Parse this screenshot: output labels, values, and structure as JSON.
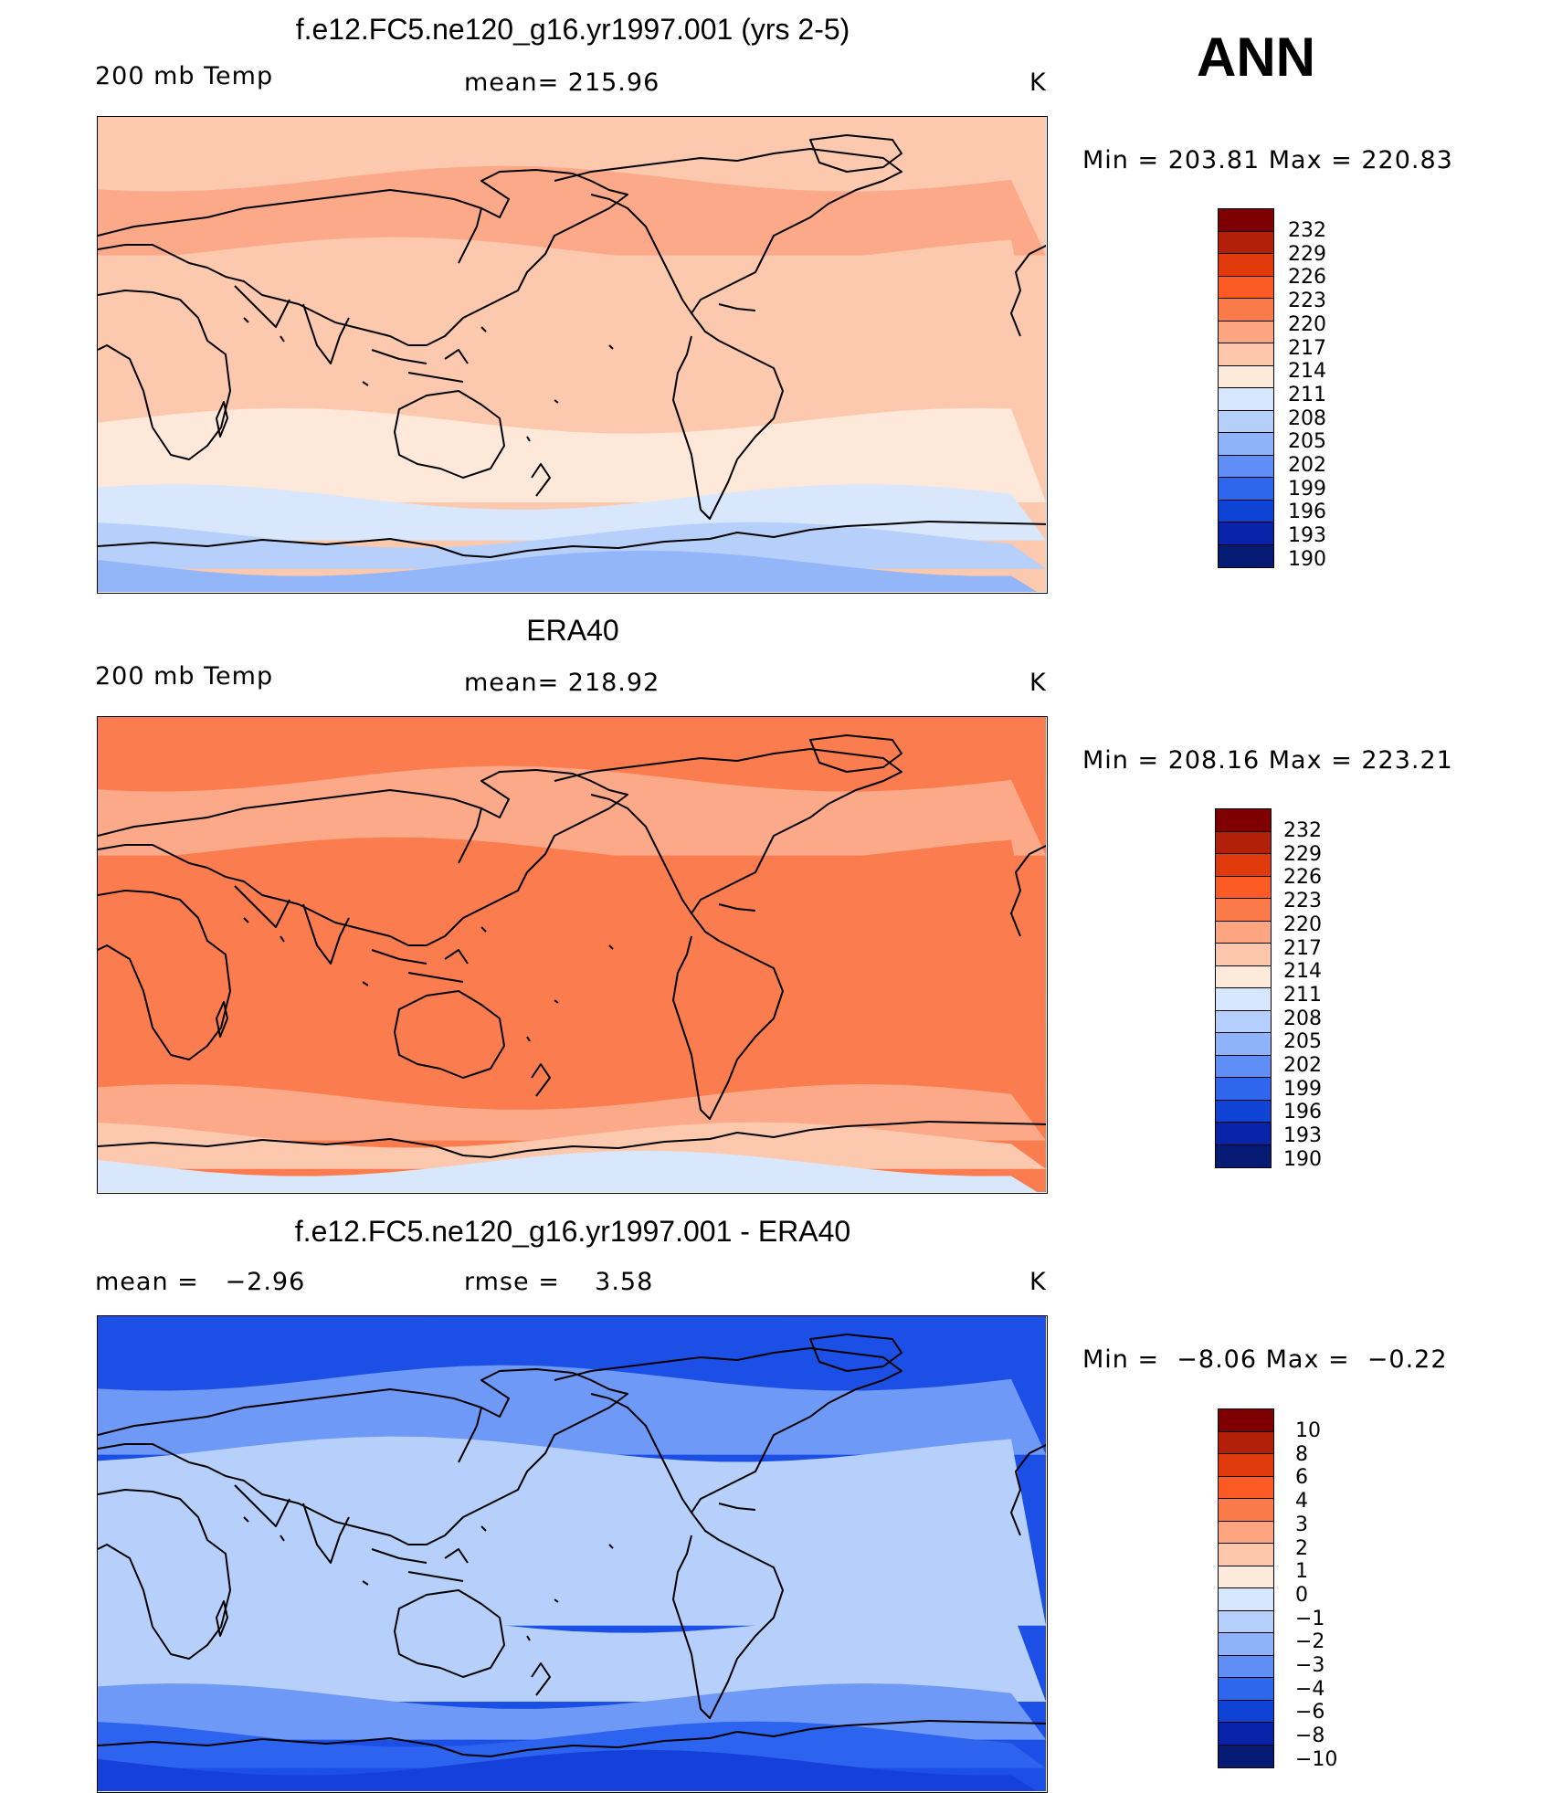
{
  "season": "ANN",
  "panels": [
    {
      "id": "model",
      "title": "f.e12.FC5.ne120_g16.yr1997.001 (yrs 2-5)",
      "left_label": "200 mb Temp",
      "center_label": "mean= 215.96",
      "units": "K",
      "minmax": "Min = 203.81 Max = 220.83",
      "legend_labels": [
        "232",
        "229",
        "226",
        "223",
        "220",
        "217",
        "214",
        "211",
        "208",
        "205",
        "202",
        "199",
        "196",
        "193",
        "190"
      ],
      "legend_colors": [
        "#7f0000",
        "#b3200a",
        "#e03a0c",
        "#fb5a25",
        "#fb7a4a",
        "#fca580",
        "#fdc7ab",
        "#feeadb",
        "#d6e6fc",
        "#b4cffb",
        "#8fb3f9",
        "#5f8ff6",
        "#2e67ee",
        "#0f43d6",
        "#0823a8",
        "#051b73"
      ],
      "map_bands": [
        "#fdc9ae",
        "#fca98a",
        "#fdc9ae",
        "#fee8da",
        "#d8e7fc",
        "#b6d0fb",
        "#93b6f9"
      ]
    },
    {
      "id": "obs",
      "title": "ERA40",
      "left_label": "200 mb Temp",
      "center_label": "mean= 218.92",
      "units": "K",
      "minmax": "Min = 208.16 Max = 223.21",
      "legend_labels": [
        "232",
        "229",
        "226",
        "223",
        "220",
        "217",
        "214",
        "211",
        "208",
        "205",
        "202",
        "199",
        "196",
        "193",
        "190"
      ],
      "legend_colors": [
        "#7f0000",
        "#b3200a",
        "#e03a0c",
        "#fb5a25",
        "#fb7a4a",
        "#fca580",
        "#fdc7ab",
        "#feeadb",
        "#d6e6fc",
        "#b4cffb",
        "#8fb3f9",
        "#5f8ff6",
        "#2e67ee",
        "#0f43d6",
        "#0823a8",
        "#051b73"
      ],
      "map_bands": [
        "#fb7d4f",
        "#fca98a",
        "#fb7d4f",
        "#fb7d4f",
        "#fca98a",
        "#fdc9ae",
        "#d8e7fc"
      ]
    },
    {
      "id": "diff",
      "title": "f.e12.FC5.ne120_g16.yr1997.001 - ERA40",
      "left_label": "mean =   −2.96",
      "center_label": "rmse =    3.58",
      "units": "K",
      "minmax": "Min =  −8.06 Max =  −0.22",
      "legend_labels": [
        "10",
        "8",
        "6",
        "4",
        "3",
        "2",
        "1",
        "0",
        "−1",
        "−2",
        "−3",
        "−4",
        "−6",
        "−8",
        "−10"
      ],
      "legend_colors": [
        "#7f0000",
        "#b3200a",
        "#e03a0c",
        "#fb5a25",
        "#fb7a4a",
        "#fca580",
        "#fdc7ab",
        "#feeadb",
        "#d6e6fc",
        "#b4cffb",
        "#8fb3f9",
        "#5f8ff6",
        "#2e67ee",
        "#0f43d6",
        "#0823a8",
        "#051b73"
      ],
      "map_bands": [
        "#1c4fe6",
        "#6f99f7",
        "#b6d0fb",
        "#b6d0fb",
        "#6f99f7",
        "#2c63ef",
        "#1540d9"
      ]
    }
  ]
}
